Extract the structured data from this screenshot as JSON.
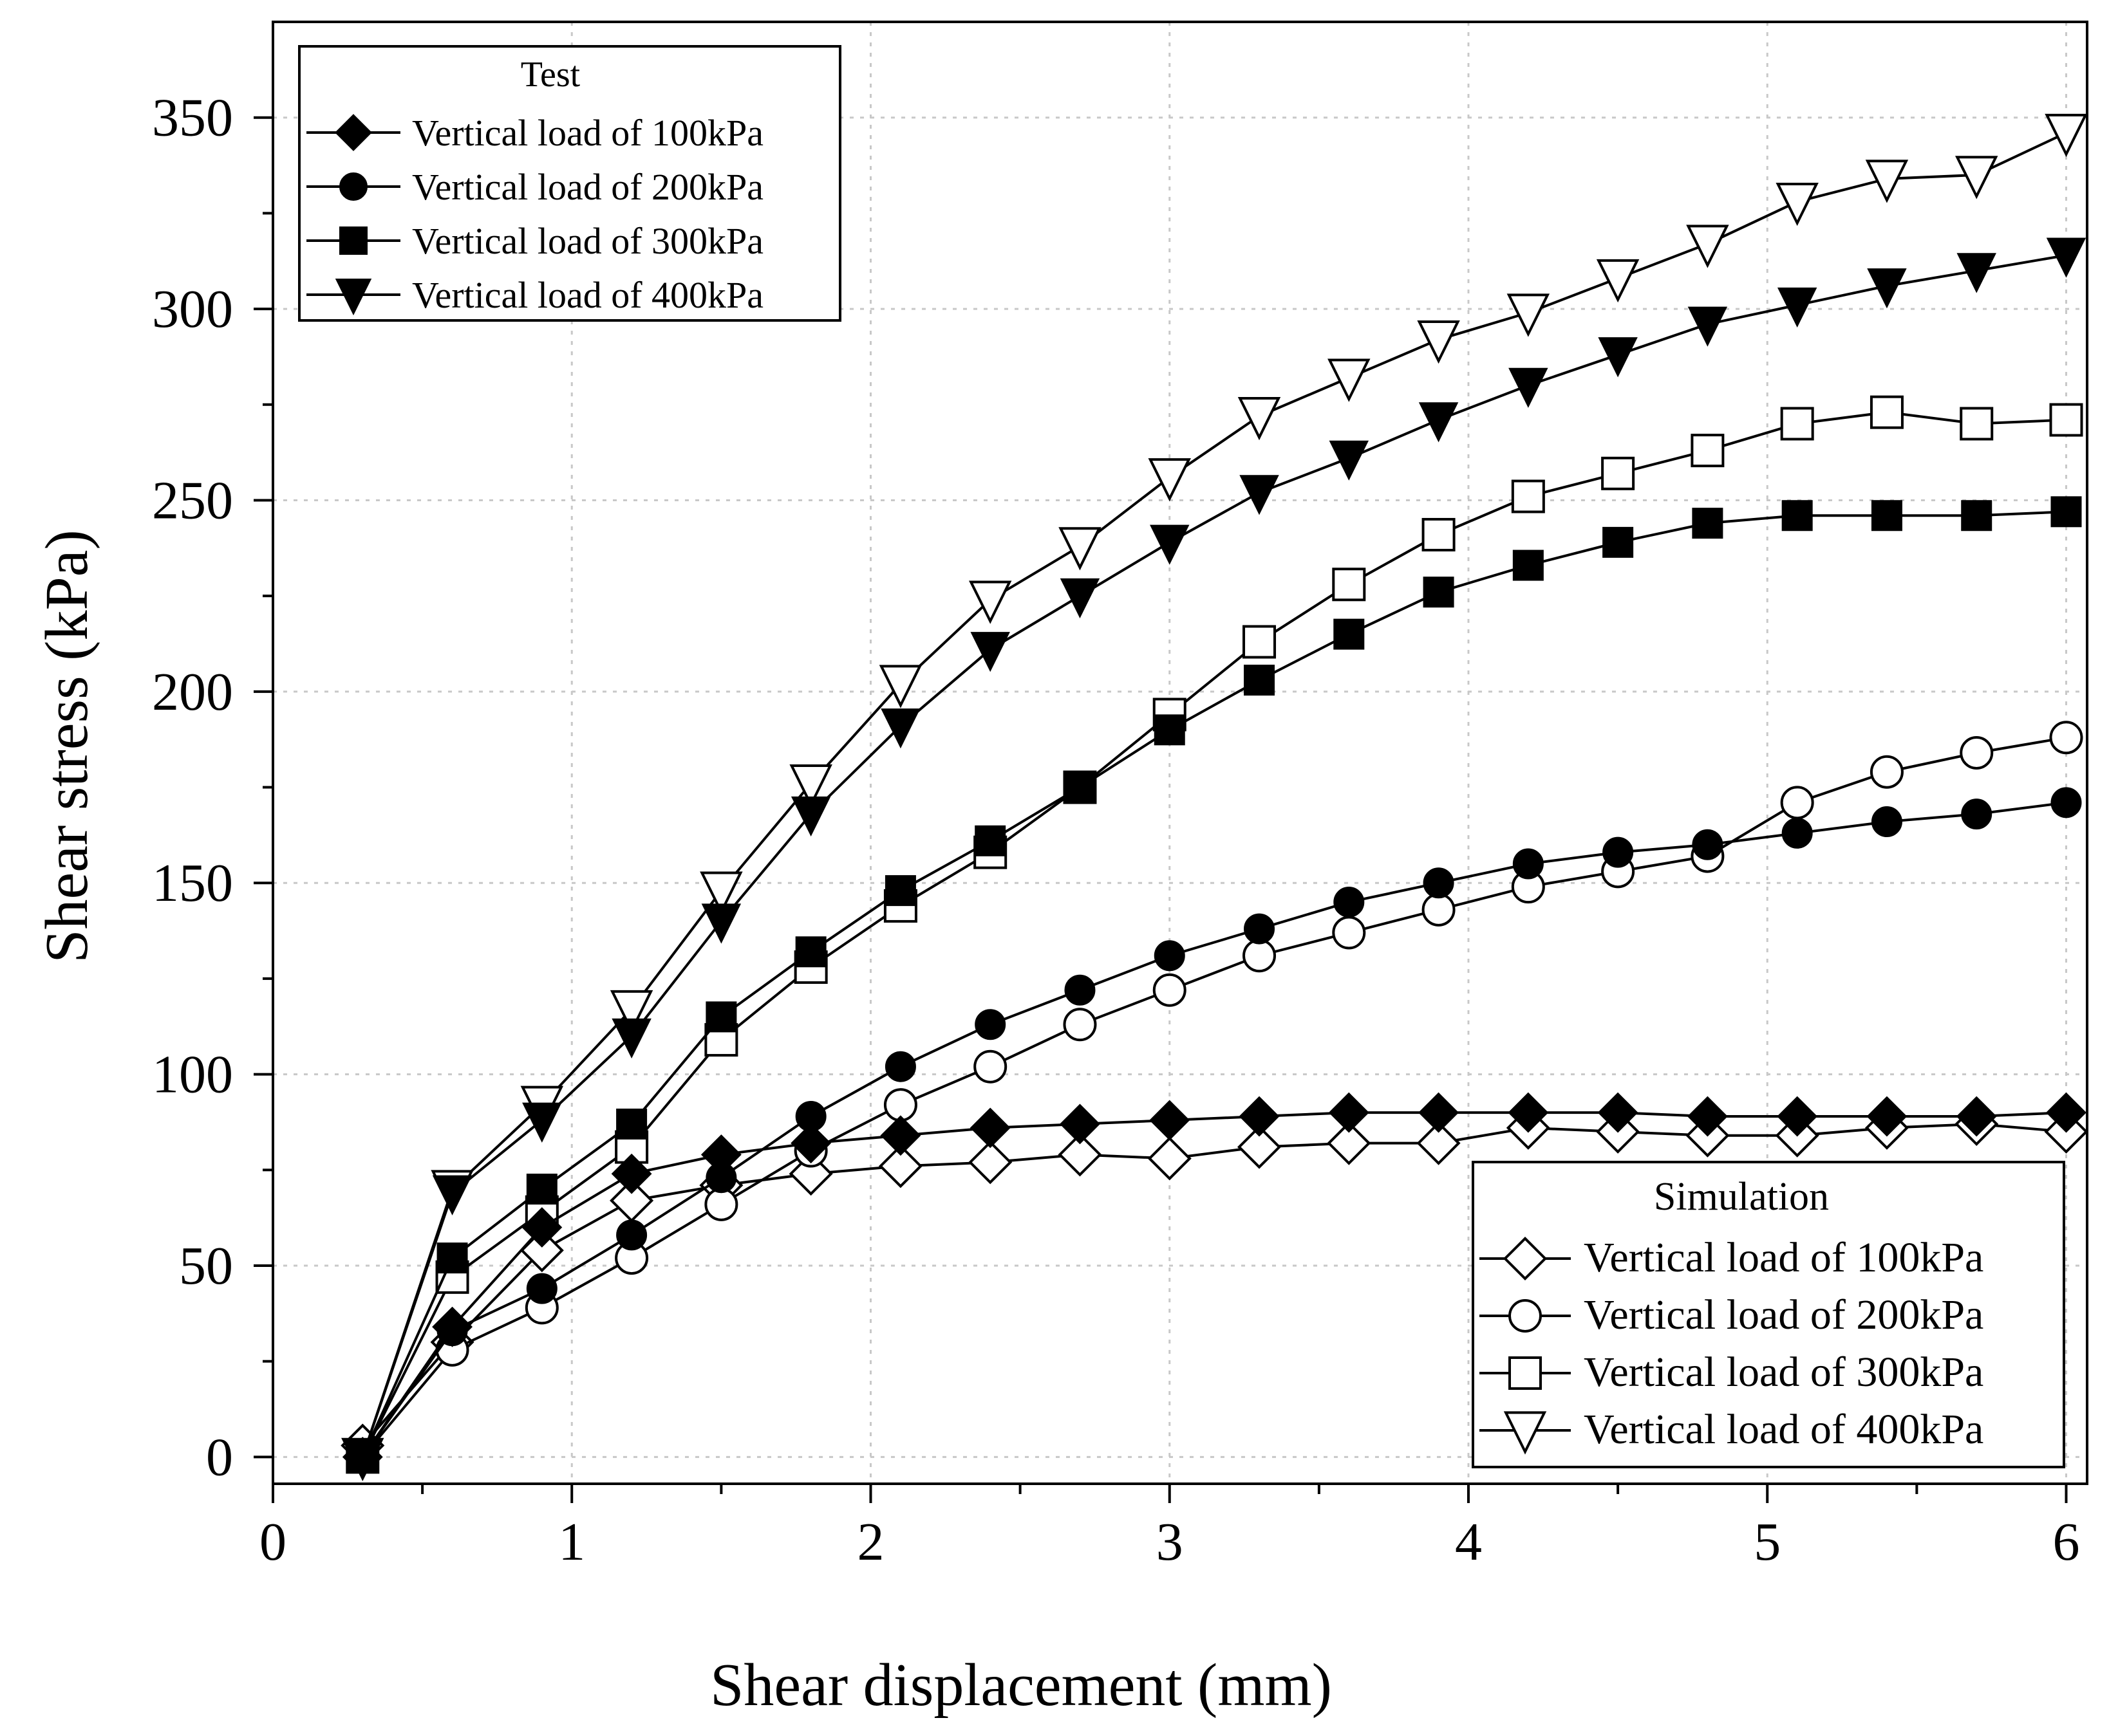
{
  "chart_data": {
    "type": "line",
    "title": "",
    "xlabel": "Shear displacement (mm)",
    "ylabel": "Shear stress (kPa)",
    "xlim": [
      0,
      6.07
    ],
    "ylim": [
      -7,
      375
    ],
    "xticks": [
      0,
      1,
      2,
      3,
      4,
      5,
      6
    ],
    "yticks": [
      0,
      50,
      100,
      150,
      200,
      250,
      300,
      350
    ],
    "grid": true,
    "x": [
      0.3,
      0.6,
      0.9,
      1.2,
      1.5,
      1.8,
      2.1,
      2.4,
      2.7,
      3.0,
      3.3,
      3.6,
      3.9,
      4.2,
      4.5,
      4.8,
      5.1,
      5.4,
      5.7,
      6.0
    ],
    "series": [
      {
        "name": "Vertical load of 100kPa",
        "group": "Test",
        "marker": "diamond",
        "filled": true,
        "values": [
          0,
          34,
          60,
          74,
          79,
          82,
          84,
          86,
          87,
          88,
          89,
          90,
          90,
          90,
          90,
          89,
          89,
          89,
          89,
          90
        ]
      },
      {
        "name": "Vertical load of 200kPa",
        "group": "Test",
        "marker": "circle",
        "filled": true,
        "values": [
          0,
          33,
          44,
          58,
          73,
          89,
          102,
          113,
          122,
          131,
          138,
          145,
          150,
          155,
          158,
          160,
          163,
          166,
          168,
          171
        ]
      },
      {
        "name": "Vertical load of 300kPa",
        "group": "Test",
        "marker": "square",
        "filled": true,
        "values": [
          0,
          52,
          70,
          87,
          115,
          132,
          148,
          161,
          175,
          190,
          203,
          215,
          226,
          233,
          239,
          244,
          246,
          246,
          246,
          247
        ]
      },
      {
        "name": "Vertical load of 400kPa",
        "group": "Test",
        "marker": "triangle-down",
        "filled": true,
        "values": [
          0,
          69,
          88,
          110,
          140,
          168,
          191,
          211,
          225,
          239,
          252,
          261,
          271,
          280,
          288,
          296,
          301,
          306,
          310,
          314
        ]
      },
      {
        "name": "Vertical load of 100kPa",
        "group": "Simulation",
        "marker": "diamond",
        "filled": false,
        "values": [
          3,
          30,
          54,
          67,
          71,
          74,
          76,
          77,
          79,
          78,
          81,
          82,
          82,
          86,
          85,
          84,
          84,
          86,
          87,
          85
        ]
      },
      {
        "name": "Vertical load of 200kPa",
        "group": "Simulation",
        "marker": "circle",
        "filled": false,
        "values": [
          0,
          28,
          39,
          52,
          66,
          80,
          92,
          102,
          113,
          122,
          131,
          137,
          143,
          149,
          153,
          157,
          171,
          179,
          184,
          188
        ]
      },
      {
        "name": "Vertical load of 300kPa",
        "group": "Simulation",
        "marker": "square",
        "filled": false,
        "values": [
          0,
          47,
          64,
          81,
          109,
          128,
          144,
          158,
          175,
          194,
          213,
          228,
          241,
          251,
          257,
          263,
          270,
          273,
          270,
          271
        ]
      },
      {
        "name": "Vertical load of 400kPa",
        "group": "Simulation",
        "marker": "triangle-down",
        "filled": false,
        "values": [
          0,
          70,
          92,
          117,
          148,
          176,
          202,
          224,
          238,
          256,
          272,
          282,
          292,
          299,
          308,
          317,
          328,
          334,
          335,
          346
        ]
      }
    ],
    "legends": [
      {
        "title": "Test",
        "placement": "top-left",
        "entries": [
          "Vertical load of 100kPa",
          "Vertical load of 200kPa",
          "Vertical load of 300kPa",
          "Vertical load of 400kPa"
        ]
      },
      {
        "title": "Simulation",
        "placement": "bottom-right",
        "entries": [
          "Vertical load of 100kPa",
          "Vertical load of 200kPa",
          "Vertical load of 300kPa",
          "Vertical load of 400kPa"
        ]
      }
    ]
  }
}
